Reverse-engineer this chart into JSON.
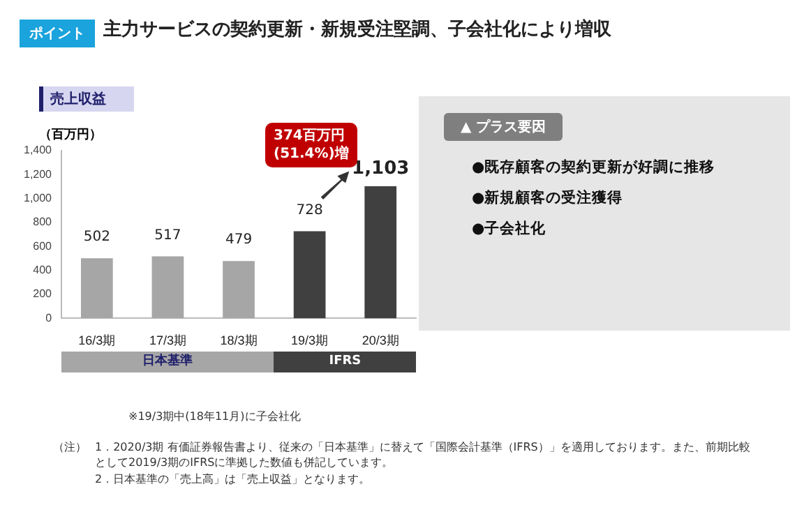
{
  "chart_data": {
    "type": "bar",
    "title": "主力サービスの契約更新・新規受注堅調、子会社化により増収",
    "subtitle": "売上収益",
    "ylabel": "（百万円）",
    "categories": [
      "16/3期",
      "17/3期",
      "18/3期",
      "19/3期",
      "20/3期"
    ],
    "values": [
      502,
      517,
      479,
      728,
      1103
    ],
    "colors": [
      "#a6a6a6",
      "#a6a6a6",
      "#a6a6a6",
      "#404040",
      "#404040"
    ],
    "value_labels": [
      "502",
      "517",
      "479",
      "728",
      "1,103"
    ],
    "ylim": [
      0,
      1400
    ],
    "yticks": [
      0,
      200,
      400,
      600,
      800,
      {
        "value": 1000,
        "label": "1,000"
      },
      {
        "value": 1200,
        "label": "1,200"
      },
      {
        "value": 1400,
        "label": "1,400"
      }
    ],
    "grid": false,
    "legend": false,
    "annotations": [
      "ポイント",
      "日本基準",
      "IFRS",
      "374百万円\n(51.4%)増",
      "▲ プラス要因",
      "●既存顧客の契約更新が好調に推移",
      "●新規顧客の受注獲得",
      "●子会社化",
      "※19/3期中(18年11月)に子会社化",
      "（注）",
      "1．2020/3期 有価証券報告書より、従来の「日本基準」に替えて「国際会計基準（IFRS）」を適用しております。また、前期比較として2019/3期のIFRSに準拠した数値も併記しています。",
      "2．日本基準の「売上高」は「売上収益」となります。"
    ]
  }
}
